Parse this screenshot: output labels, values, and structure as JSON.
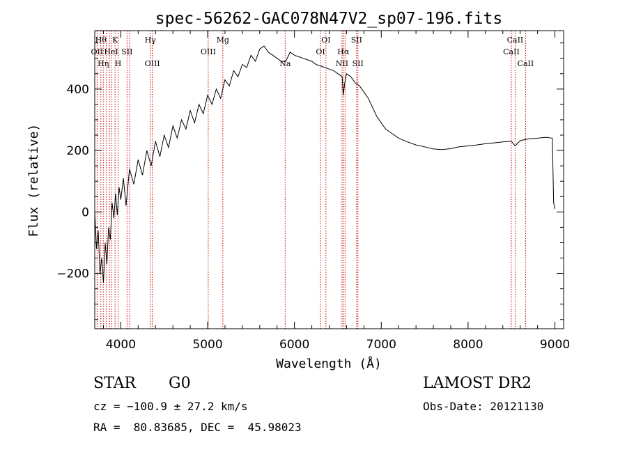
{
  "chart_data": {
    "type": "line",
    "title": "spec-56262-GAC078N47V2_sp07-196.fits",
    "xlabel": "Wavelength (Å)",
    "ylabel": "Flux (relative)",
    "xlim": [
      3700,
      9100
    ],
    "ylim": [
      -380,
      590
    ],
    "x_ticks": [
      4000,
      5000,
      6000,
      7000,
      8000,
      9000
    ],
    "x_tick_labels": [
      "4000",
      "5000",
      "6000",
      "7000",
      "8000",
      "9000"
    ],
    "y_ticks": [
      -200,
      0,
      200,
      400
    ],
    "y_tick_labels": [
      "−200",
      "0",
      "200",
      "400"
    ],
    "series": [
      {
        "x": [
          3700,
          3720,
          3740,
          3760,
          3780,
          3800,
          3820,
          3840,
          3860,
          3880,
          3900,
          3920,
          3940,
          3960,
          3980,
          4000,
          4030,
          4060,
          4100,
          4150,
          4200,
          4250,
          4300,
          4350,
          4400,
          4450,
          4500,
          4550,
          4600,
          4650,
          4700,
          4750,
          4800,
          4850,
          4900,
          4950,
          5000,
          5050,
          5100,
          5150,
          5200,
          5250,
          5300,
          5350,
          5400,
          5450,
          5500,
          5550,
          5600,
          5650,
          5700,
          5750,
          5800,
          5850,
          5900,
          5950,
          6000,
          6050,
          6100,
          6150,
          6200,
          6250,
          6300,
          6350,
          6400,
          6450,
          6500,
          6550,
          6562,
          6580,
          6600,
          6650,
          6700,
          6750,
          6800,
          6850,
          6900,
          6950,
          7000,
          7050,
          7100,
          7150,
          7200,
          7300,
          7400,
          7500,
          7600,
          7700,
          7800,
          7900,
          8000,
          8100,
          8200,
          8300,
          8400,
          8500,
          8540,
          8600,
          8700,
          8800,
          8900,
          8970,
          8985,
          9000
        ],
        "y": [
          0,
          -120,
          -60,
          -200,
          -150,
          -230,
          -100,
          -170,
          -50,
          -90,
          30,
          -20,
          60,
          -10,
          80,
          40,
          110,
          20,
          140,
          90,
          170,
          120,
          200,
          150,
          230,
          180,
          250,
          210,
          280,
          240,
          300,
          270,
          330,
          290,
          350,
          320,
          380,
          350,
          400,
          370,
          430,
          410,
          460,
          440,
          480,
          470,
          510,
          490,
          530,
          540,
          520,
          510,
          500,
          490,
          490,
          520,
          510,
          505,
          500,
          495,
          490,
          480,
          475,
          470,
          465,
          460,
          450,
          440,
          380,
          420,
          450,
          440,
          420,
          410,
          390,
          370,
          340,
          310,
          290,
          270,
          260,
          250,
          240,
          228,
          218,
          212,
          205,
          203,
          206,
          212,
          215,
          218,
          222,
          225,
          228,
          230,
          215,
          232,
          238,
          240,
          243,
          240,
          30,
          10
        ]
      }
    ],
    "line_annotations": [
      {
        "x": 3727,
        "label": "OII",
        "row": 1
      },
      {
        "x": 3770,
        "label": "Hθ",
        "row": 0
      },
      {
        "x": 3798,
        "label": "Hη",
        "row": 2
      },
      {
        "x": 3835,
        "label": "",
        "row": 2
      },
      {
        "x": 3869,
        "label": "",
        "row": 2
      },
      {
        "x": 3889,
        "label": "HeI",
        "row": 1
      },
      {
        "x": 3934,
        "label": "K",
        "row": 0
      },
      {
        "x": 3969,
        "label": "H",
        "row": 2
      },
      {
        "x": 4072,
        "label": "SII",
        "row": 1
      },
      {
        "x": 4102,
        "label": "",
        "row": 2
      },
      {
        "x": 4340,
        "label": "Hγ",
        "row": 0
      },
      {
        "x": 4363,
        "label": "OIII",
        "row": 2
      },
      {
        "x": 5007,
        "label": "OIII",
        "row": 1
      },
      {
        "x": 5175,
        "label": "Mg",
        "row": 0
      },
      {
        "x": 5893,
        "label": "Na",
        "row": 2
      },
      {
        "x": 6300,
        "label": "OI",
        "row": 1
      },
      {
        "x": 6363,
        "label": "OI",
        "row": 0
      },
      {
        "x": 6548,
        "label": "NII",
        "row": 2
      },
      {
        "x": 6563,
        "label": "Hα",
        "row": 1
      },
      {
        "x": 6583,
        "label": "",
        "row": 2
      },
      {
        "x": 6716,
        "label": "SII",
        "row": 0
      },
      {
        "x": 6731,
        "label": "SII",
        "row": 2
      },
      {
        "x": 8498,
        "label": "CaII",
        "row": 1
      },
      {
        "x": 8542,
        "label": "CaII",
        "row": 0
      },
      {
        "x": 8662,
        "label": "CaII",
        "row": 2
      }
    ],
    "colors": {
      "spectrum": "#000000",
      "line_markers": "#cc0000",
      "axes": "#000000"
    }
  },
  "info": {
    "object_class": "STAR",
    "subclass": "G0",
    "survey": "LAMOST DR2",
    "redshift_line": "cz = −100.9 ± 27.2 km/s",
    "obs_date_line": "Obs-Date: 20121130",
    "coords_line": "RA =  80.83685, DEC =  45.98023"
  }
}
